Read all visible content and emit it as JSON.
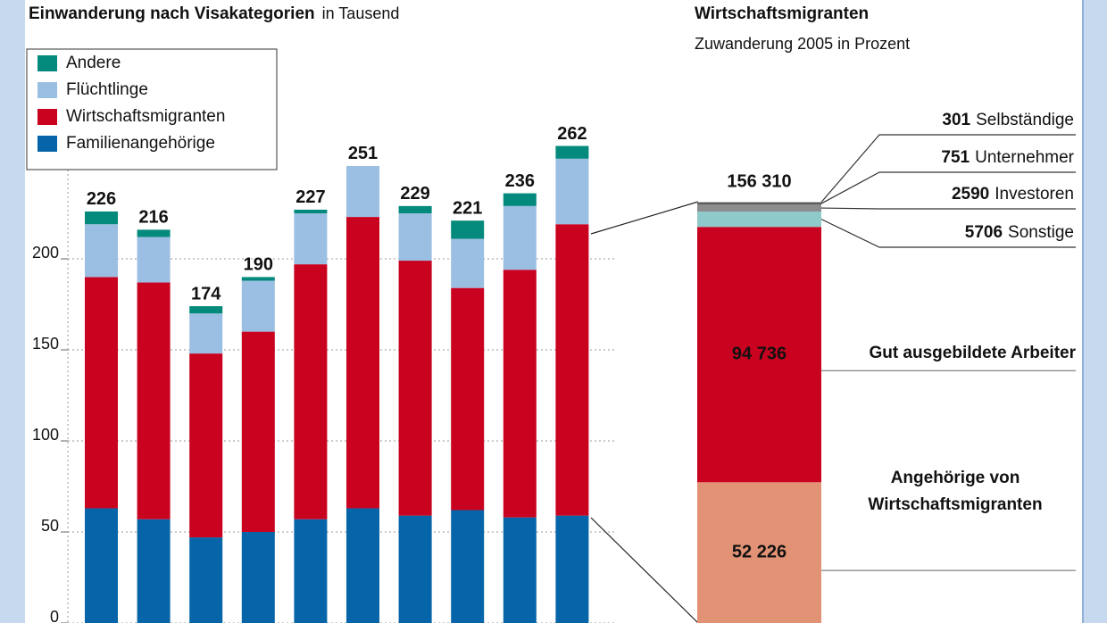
{
  "chart_data": [
    {
      "type": "stacked-bar",
      "title": "Einwanderung nach Visakategorien",
      "subtitle": "in Tausend",
      "categories": [
        null,
        null,
        null,
        null,
        null,
        null,
        null,
        null,
        null,
        null
      ],
      "series": [
        {
          "name": "Familienangehörige",
          "color": "#0565a8",
          "values": [
            63,
            57,
            47,
            50,
            57,
            63,
            59,
            62,
            58,
            59
          ]
        },
        {
          "name": "Wirtschaftsmigranten",
          "color": "#c9021f",
          "values": [
            127,
            130,
            101,
            110,
            140,
            160,
            140,
            122,
            136,
            160
          ]
        },
        {
          "name": "Flüchtlinge",
          "color": "#9bbfe2",
          "values": [
            29,
            25,
            22,
            28,
            28,
            28,
            26,
            27,
            35,
            36
          ]
        },
        {
          "name": "Andere",
          "color": "#048a7c",
          "values": [
            7,
            4,
            4,
            2,
            2,
            0,
            4,
            10,
            7,
            7
          ]
        }
      ],
      "totals": [
        226,
        216,
        174,
        190,
        227,
        251,
        229,
        221,
        236,
        262
      ],
      "ylim": [
        0,
        300
      ],
      "yticks": [
        0,
        50,
        100,
        150,
        200
      ],
      "grid": true,
      "legend": "top-left"
    },
    {
      "type": "single-stacked-bar",
      "title": "Wirtschaftsmigranten",
      "subtitle": "Zuwanderung 2005 in Prozent",
      "categories": [
        "Angehörige von Wirtschaftsmigranten",
        "Gut ausgebildete Arbeiter",
        "Sonstige",
        "Investoren",
        "Unternehmer",
        "Selbständige"
      ],
      "values": [
        52226,
        94736,
        5706,
        2590,
        751,
        301
      ],
      "value_labels": [
        "52 226",
        "94 736",
        "5706",
        "2590",
        "751",
        "301"
      ],
      "colors": [
        "#e39375",
        "#c9021f",
        "#8fcaca",
        "#8c8c8c",
        "#5a5a5a",
        "#b0b0b0"
      ],
      "total": {
        "value": 156310,
        "label": "156 310"
      }
    }
  ]
}
